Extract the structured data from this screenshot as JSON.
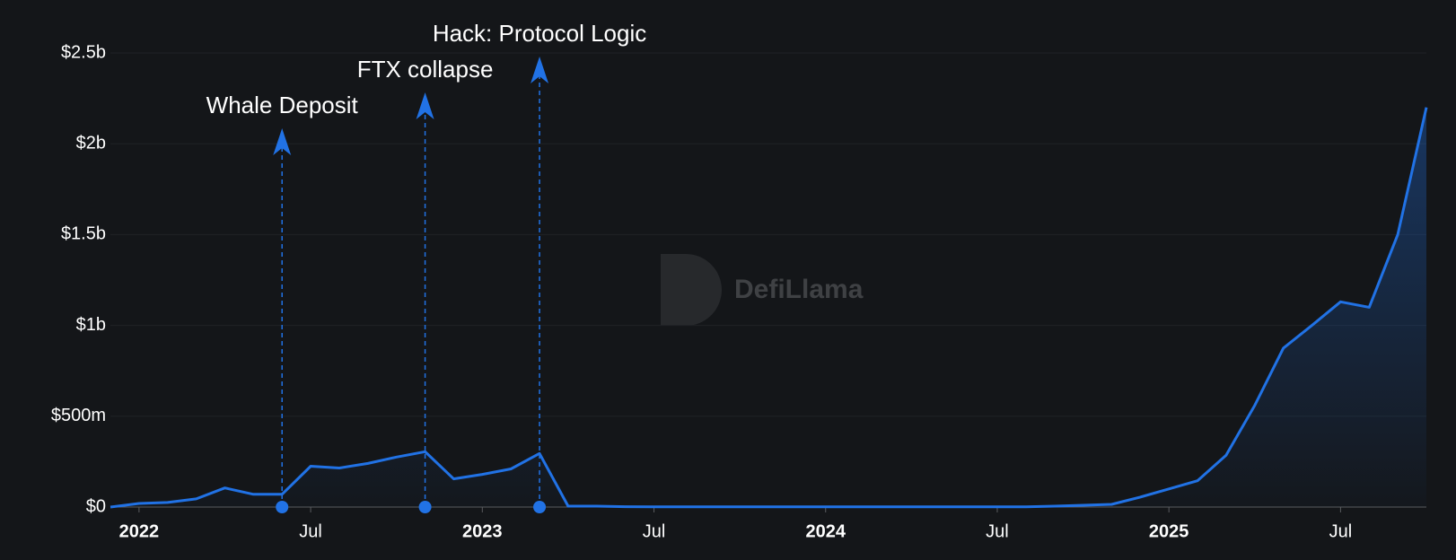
{
  "chart_data": {
    "type": "area",
    "x": [
      "2021-12",
      "2022-01",
      "2022-02",
      "2022-03",
      "2022-04",
      "2022-05",
      "2022-06",
      "2022-07",
      "2022-08",
      "2022-09",
      "2022-10",
      "2022-11",
      "2022-12",
      "2023-01",
      "2023-02",
      "2023-03",
      "2023-04",
      "2023-05",
      "2023-06",
      "2023-07",
      "2023-08",
      "2023-09",
      "2023-10",
      "2023-11",
      "2023-12",
      "2024-01",
      "2024-02",
      "2024-03",
      "2024-04",
      "2024-05",
      "2024-06",
      "2024-07",
      "2024-08",
      "2024-09",
      "2024-10",
      "2024-11",
      "2024-12",
      "2025-01",
      "2025-02",
      "2025-03",
      "2025-04",
      "2025-05",
      "2025-06",
      "2025-07",
      "2025-08",
      "2025-09",
      "2025-10"
    ],
    "values": [
      0,
      20,
      25,
      45,
      105,
      70,
      70,
      225,
      215,
      240,
      275,
      305,
      155,
      180,
      210,
      295,
      5,
      5,
      2,
      1,
      1,
      1,
      1,
      1,
      1,
      1,
      1,
      1,
      1,
      1,
      1,
      1,
      1,
      5,
      10,
      15,
      55,
      100,
      145,
      285,
      560,
      875,
      1000,
      1130,
      1100,
      1500,
      2200
    ],
    "color": "#2172e5",
    "xlim": [
      "2021-12",
      "2025-10"
    ],
    "xticks": [
      {
        "value": "2022-01",
        "label": "2022"
      },
      {
        "value": "2022-07",
        "label": "Jul"
      },
      {
        "value": "2023-01",
        "label": "2023"
      },
      {
        "value": "2023-07",
        "label": "Jul"
      },
      {
        "value": "2024-01",
        "label": "2024"
      },
      {
        "value": "2024-07",
        "label": "Jul"
      },
      {
        "value": "2025-01",
        "label": "2025"
      },
      {
        "value": "2025-07",
        "label": "Jul"
      }
    ],
    "ylim": [
      0,
      2500
    ],
    "yticks": [
      {
        "value": 0,
        "label": "$0"
      },
      {
        "value": 500,
        "label": "$500m"
      },
      {
        "value": 1000,
        "label": "$1b"
      },
      {
        "value": 1500,
        "label": "$1.5b"
      },
      {
        "value": 2000,
        "label": "$2b"
      },
      {
        "value": 2500,
        "label": "$2.5b"
      }
    ],
    "grid": true,
    "annotations": [
      {
        "x": "2022-06",
        "label": "Whale Deposit"
      },
      {
        "x": "2022-11",
        "label": "FTX collapse"
      },
      {
        "x": "2023-03",
        "label": "Hack: Protocol Logic"
      }
    ],
    "watermark": "DefiLlama"
  }
}
